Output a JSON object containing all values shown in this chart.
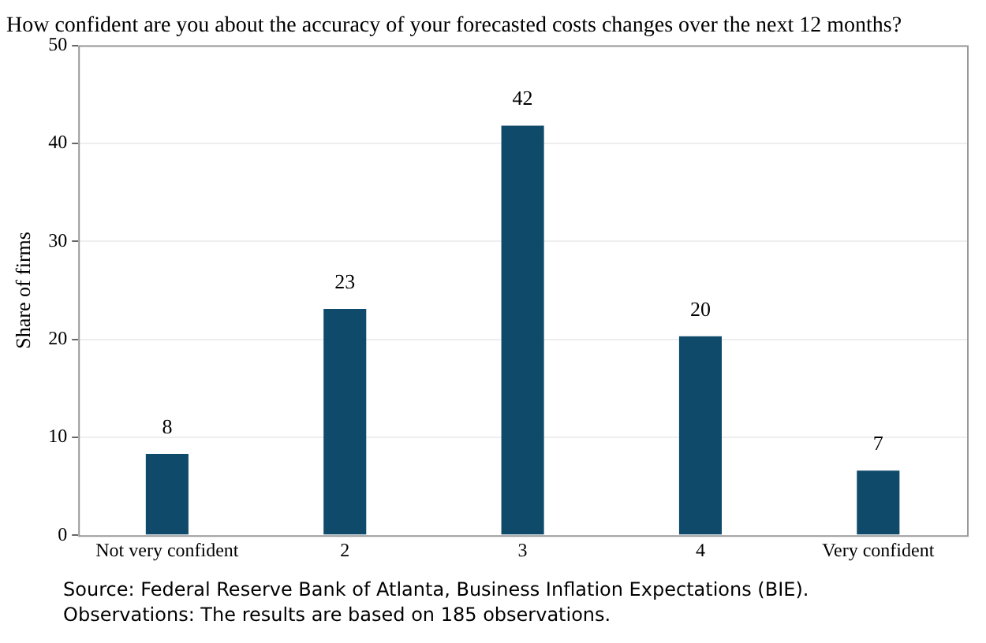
{
  "chart_data": {
    "type": "bar",
    "title": "How confident are you about the accuracy of your forecasted costs changes over the next 12 months?",
    "ylabel": "Share of firms",
    "categories": [
      "Not very confident",
      "2",
      "3",
      "4",
      "Very confident"
    ],
    "values": [
      8.3,
      23.1,
      41.8,
      20.3,
      6.6
    ],
    "value_labels": [
      "8",
      "23",
      "42",
      "20",
      "7"
    ],
    "color": "#0f4a6b",
    "ylim": [
      0,
      50
    ],
    "yticks": [
      0,
      10,
      20,
      30,
      40,
      50
    ],
    "grid": "y",
    "annotations": [
      "Source: Federal Reserve Bank of Atlanta, Business Inflation Expectations (BIE).",
      "Observations: The results are based on 185 observations."
    ]
  }
}
